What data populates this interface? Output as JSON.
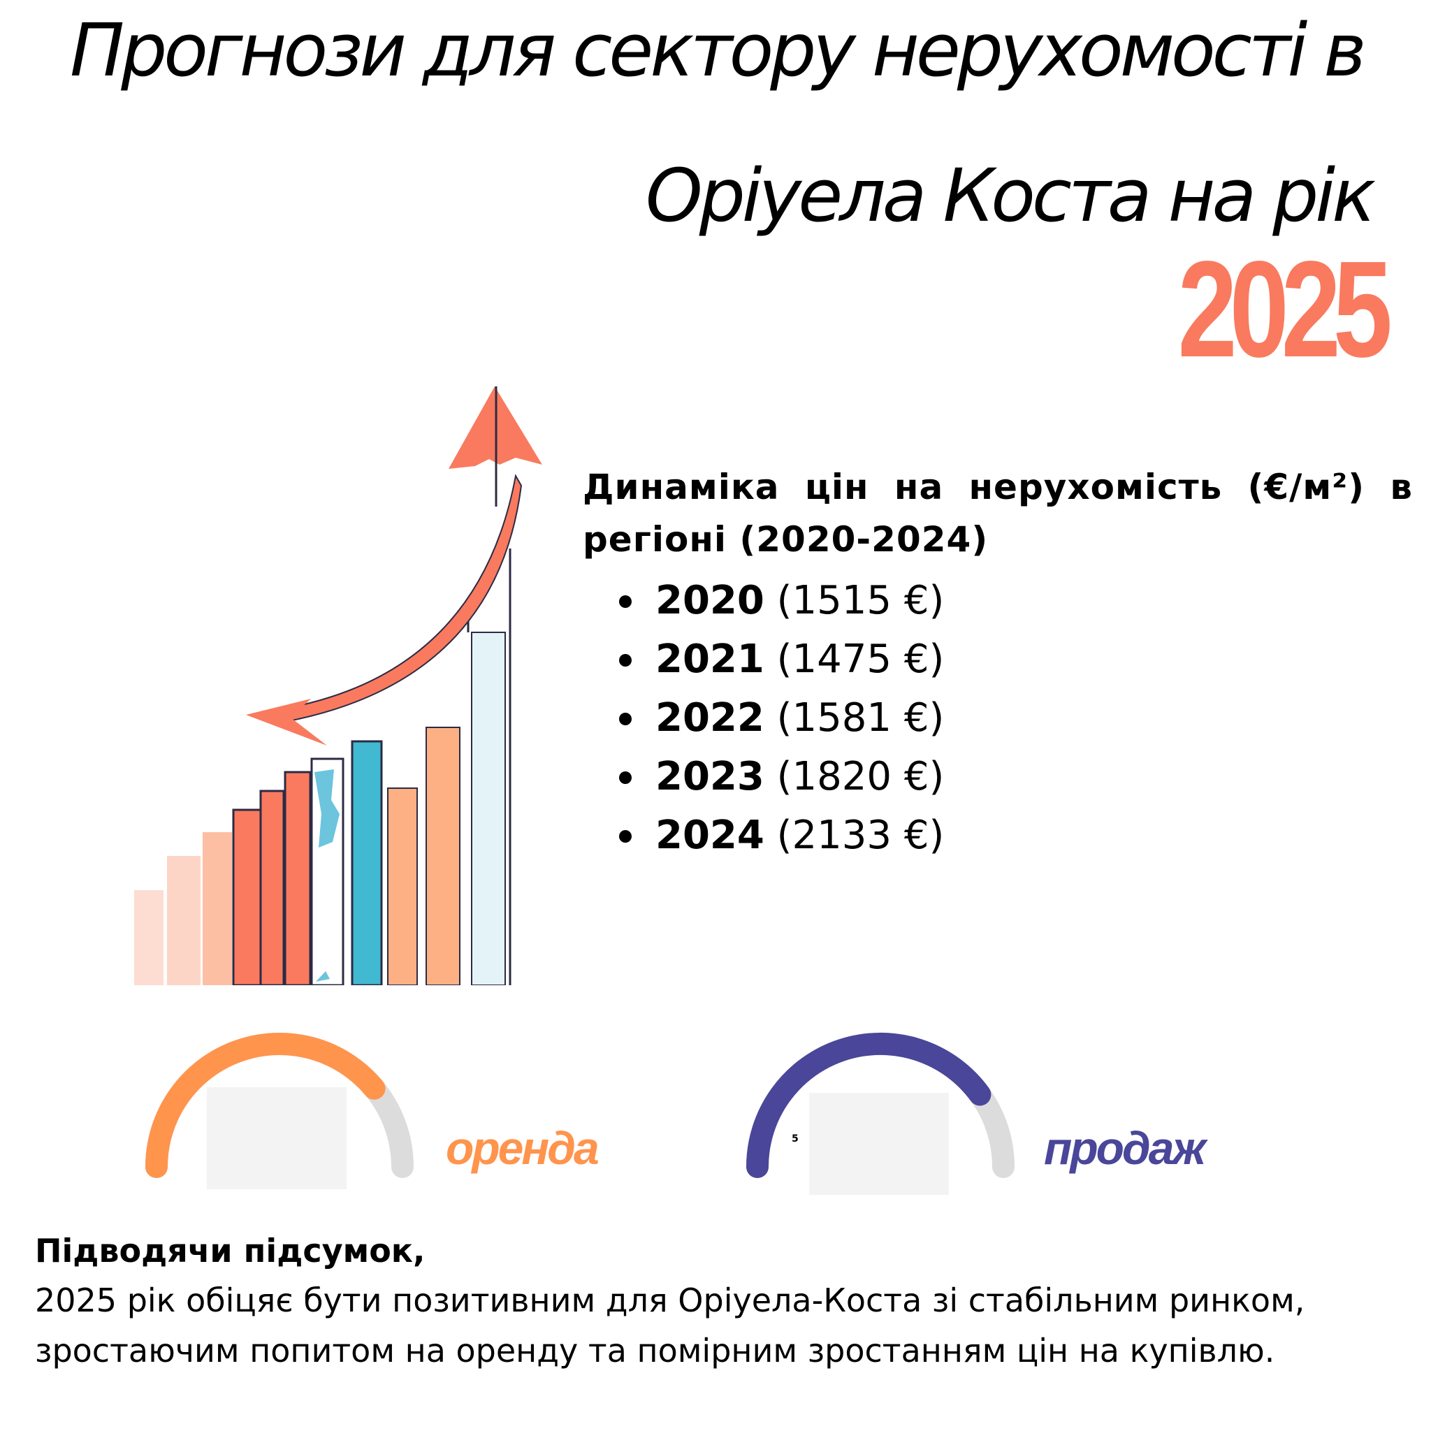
{
  "title": {
    "line1": "Прогнози для сектору нерухомості в",
    "line2": "Оріуела Коста на рік",
    "year": "2025"
  },
  "prices": {
    "heading": "Динаміка цін на нерухомість (€/м²) в регіоні (2020-2024)",
    "items": [
      {
        "year": "2020",
        "value": "(1515 €)"
      },
      {
        "year": "2021",
        "value": "(1475 €)"
      },
      {
        "year": "2022",
        "value": "(1581 €)"
      },
      {
        "year": "2023",
        "value": "(1820 €)"
      },
      {
        "year": "2024",
        "value": "(2133 €)"
      }
    ]
  },
  "gauges": {
    "rent": {
      "label": "оренда",
      "level_percent": 78,
      "color": "#FF944D"
    },
    "sale": {
      "label": "продаж",
      "level_percent": 80,
      "value_text": "5",
      "color": "#4A4699"
    }
  },
  "summary": {
    "heading": "Підводячи підсумок,",
    "text": "2025 рік обіцяє бути позитивним для Оріуела-Коста зі стабільним ринком, зростаючим попитом на оренду та помірним зростанням цін на купівлю."
  },
  "colors": {
    "accent": "#F97A5E",
    "rent": "#FF944D",
    "sale": "#4A4699",
    "track": "#DCDCDC"
  },
  "icons": {
    "illustration": "growth-bar-chart-with-arrow-illustration"
  }
}
